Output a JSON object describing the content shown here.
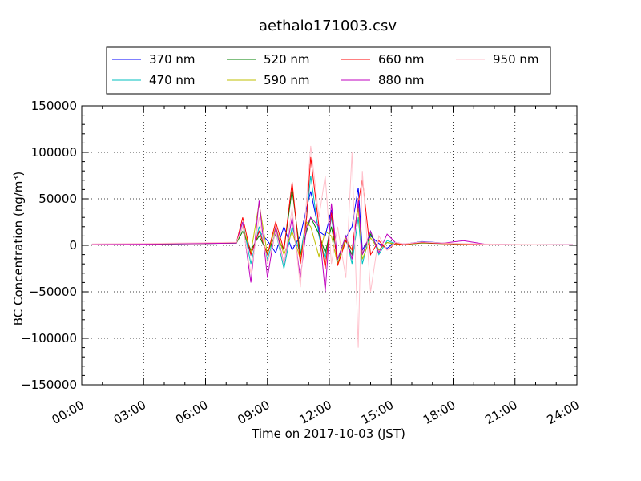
{
  "chart_data": {
    "type": "line",
    "title": "aethalo171003.csv",
    "xlabel": "Time on 2017-10-03 (JST)",
    "ylabel": "BC Concentration (ng/m³)",
    "x_ticks": [
      "00:00",
      "03:00",
      "06:00",
      "09:00",
      "12:00",
      "15:00",
      "18:00",
      "21:00",
      "24:00"
    ],
    "y_ticks": [
      "150000",
      "100000",
      "50000",
      "0",
      "−50000",
      "−100000",
      "−150000"
    ],
    "xlim_hours": [
      0,
      24
    ],
    "ylim": [
      -150000,
      150000
    ],
    "grid": true,
    "legend_location": "top, outside plot",
    "series": [
      {
        "name": "370 nm",
        "color": "#0000ff",
        "x": [
          0.5,
          3,
          6,
          7.5,
          7.8,
          8.2,
          8.6,
          9,
          9.4,
          9.8,
          10.2,
          10.6,
          10.9,
          11.1,
          11.5,
          11.8,
          12.1,
          12.4,
          12.8,
          13.1,
          13.4,
          13.6,
          14,
          14.4,
          14.8,
          15.2,
          15.6,
          16.5,
          17.5,
          18.5,
          19.5,
          21,
          22.5,
          23.8
        ],
        "y": [
          1000,
          1200,
          2000,
          2500,
          20000,
          -10000,
          15000,
          5000,
          -8000,
          20000,
          -5000,
          10000,
          40000,
          58000,
          15000,
          10000,
          38000,
          -20000,
          8000,
          20000,
          62000,
          -5000,
          10000,
          2000,
          -3000,
          3000,
          1000,
          4000,
          2500,
          1500,
          1200,
          800,
          600,
          500
        ]
      },
      {
        "name": "470 nm",
        "color": "#00bfbf",
        "x": [
          0.5,
          3,
          6,
          7.5,
          7.8,
          8.2,
          8.6,
          9,
          9.4,
          9.8,
          10.2,
          10.6,
          10.9,
          11.1,
          11.5,
          11.8,
          12.1,
          12.4,
          12.8,
          13.1,
          13.4,
          13.6,
          14,
          14.4,
          14.8,
          15.2,
          15.6,
          16.5,
          17.5,
          18.5,
          19.5,
          21,
          22.5,
          23.8
        ],
        "y": [
          1200,
          1500,
          2300,
          2800,
          25000,
          -20000,
          20000,
          -15000,
          15000,
          -25000,
          20000,
          -10000,
          30000,
          75000,
          10000,
          -15000,
          30000,
          -15000,
          10000,
          -20000,
          30000,
          -20000,
          15000,
          -10000,
          5000,
          2000,
          1000,
          3000,
          2000,
          1500,
          1000,
          700,
          500,
          400
        ]
      },
      {
        "name": "520 nm",
        "color": "#008000",
        "x": [
          0.5,
          3,
          6,
          7.5,
          7.8,
          8.2,
          8.6,
          9,
          9.4,
          9.8,
          10.2,
          10.6,
          10.9,
          11.1,
          11.5,
          11.8,
          12.1,
          12.4,
          12.8,
          13.1,
          13.4,
          13.6,
          14,
          14.4,
          14.8,
          15.2,
          15.6,
          16.5,
          17.5,
          18.5,
          19.5,
          21,
          22.5,
          23.8
        ],
        "y": [
          900,
          1100,
          1900,
          2400,
          15000,
          -5000,
          10000,
          -8000,
          12000,
          -5000,
          60000,
          -10000,
          15000,
          30000,
          12000,
          -8000,
          20000,
          -15000,
          5000,
          -10000,
          45000,
          -10000,
          12000,
          -5000,
          3000,
          1500,
          800,
          2500,
          1800,
          1200,
          900,
          600,
          500,
          400
        ]
      },
      {
        "name": "590 nm",
        "color": "#bfbf00",
        "x": [
          0.5,
          3,
          6,
          7.5,
          7.8,
          8.2,
          8.6,
          9,
          9.4,
          9.8,
          10.2,
          10.6,
          10.9,
          11.1,
          11.5,
          11.8,
          12.1,
          12.4,
          12.8,
          13.1,
          13.4,
          13.6,
          14,
          14.4,
          14.8,
          15.2,
          15.6,
          16.5,
          17.5,
          18.5,
          19.5,
          21,
          22.5,
          23.8
        ],
        "y": [
          1000,
          1300,
          2100,
          2600,
          20000,
          -8000,
          45000,
          -10000,
          20000,
          -10000,
          15000,
          -15000,
          25000,
          20000,
          -12000,
          15000,
          10000,
          -20000,
          8000,
          -5000,
          40000,
          -15000,
          8000,
          -5000,
          3000,
          1500,
          900,
          2800,
          2000,
          1300,
          1000,
          700,
          500,
          400
        ]
      },
      {
        "name": "660 nm",
        "color": "#ff0000",
        "x": [
          0.5,
          3,
          6,
          7.5,
          7.8,
          8.2,
          8.6,
          9,
          9.4,
          9.8,
          10.2,
          10.6,
          10.9,
          11.1,
          11.5,
          11.8,
          12.1,
          12.4,
          12.8,
          13.1,
          13.4,
          13.6,
          14,
          14.4,
          14.8,
          15.2,
          15.6,
          16.5,
          17.5,
          18.5,
          19.5,
          21,
          22.5,
          23.8
        ],
        "y": [
          1100,
          1400,
          2200,
          2700,
          30000,
          -10000,
          15000,
          -10000,
          25000,
          -5000,
          68000,
          -20000,
          30000,
          95000,
          20000,
          -25000,
          35000,
          -22000,
          5000,
          -5000,
          45000,
          72000,
          -10000,
          5000,
          -5000,
          2000,
          1000,
          3000,
          2000,
          1500,
          1100,
          800,
          600,
          500
        ]
      },
      {
        "name": "880 nm",
        "color": "#bf00bf",
        "x": [
          0.5,
          3,
          6,
          7.5,
          7.8,
          8.2,
          8.6,
          9,
          9.4,
          9.8,
          10.2,
          10.6,
          10.9,
          11.1,
          11.5,
          11.8,
          12.1,
          12.4,
          12.8,
          13.1,
          13.4,
          13.6,
          14,
          14.4,
          14.8,
          15.2,
          15.6,
          16.5,
          17.5,
          18.5,
          19.5,
          21,
          22.5,
          23.8
        ],
        "y": [
          1000,
          1300,
          2000,
          2500,
          25000,
          -40000,
          48000,
          -35000,
          20000,
          -20000,
          30000,
          -35000,
          20000,
          30000,
          20000,
          -50000,
          45000,
          -15000,
          10000,
          -15000,
          48000,
          -10000,
          15000,
          -8000,
          12000,
          3000,
          1500,
          3500,
          2200,
          5000,
          1400,
          900,
          700,
          600
        ]
      },
      {
        "name": "950 nm",
        "color": "#ffc0cb",
        "x": [
          0.5,
          3,
          6,
          7.5,
          7.8,
          8.2,
          8.6,
          9,
          9.4,
          9.8,
          10.2,
          10.6,
          10.9,
          11.1,
          11.5,
          11.8,
          12.1,
          12.4,
          12.8,
          13.1,
          13.4,
          13.6,
          14,
          14.4,
          14.8,
          15.2,
          15.6,
          16.5,
          17.5,
          18.5,
          19.5,
          21,
          22.5,
          23.8
        ],
        "y": [
          1500,
          2000,
          2800,
          3200,
          20000,
          -30000,
          30000,
          -20000,
          15000,
          -20000,
          40000,
          -45000,
          50000,
          107000,
          30000,
          75000,
          -20000,
          20000,
          -35000,
          100000,
          -110000,
          80000,
          -50000,
          10000,
          -5000,
          3000,
          1500,
          3500,
          2500,
          1800,
          1400,
          1000,
          800,
          600
        ]
      }
    ]
  }
}
